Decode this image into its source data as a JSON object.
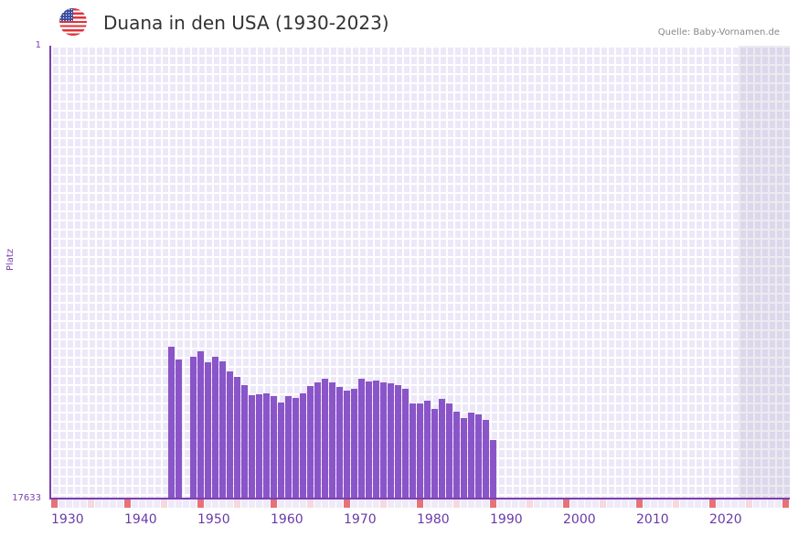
{
  "header": {
    "title": "Duana in den USA (1930-2023)",
    "source": "Quelle: Baby-Vornamen.de",
    "flag_icon": "us-flag-icon"
  },
  "colors": {
    "bar": "#8a55c8",
    "axis": "#7b3fb0",
    "decade_marker": "#e57278",
    "half_decade_marker": "#f5d9e0",
    "grid_cell": "#ede8f8",
    "future_shade": "#e3dfee"
  },
  "chart_data": {
    "type": "bar",
    "title": "Duana in den USA (1930-2023)",
    "xlabel": "",
    "ylabel": "Platz",
    "y_inverted": true,
    "ylim": [
      1,
      17633
    ],
    "y_ticks": [
      "1",
      "17633"
    ],
    "x_range": [
      1930,
      2030
    ],
    "x_ticks": [
      "1930",
      "1940",
      "1950",
      "1960",
      "1970",
      "1980",
      "1990",
      "2000",
      "2010",
      "2020"
    ],
    "future_shaded_from": 2024,
    "grid": true,
    "legend": "none",
    "x": [
      1946,
      1947,
      1949,
      1950,
      1951,
      1952,
      1953,
      1954,
      1955,
      1956,
      1957,
      1958,
      1959,
      1960,
      1961,
      1962,
      1963,
      1964,
      1965,
      1966,
      1967,
      1968,
      1969,
      1970,
      1971,
      1972,
      1973,
      1974,
      1975,
      1976,
      1977,
      1978,
      1979,
      1980,
      1981,
      1982,
      1983,
      1984,
      1985,
      1986,
      1987,
      1988,
      1989,
      1990
    ],
    "series": [
      {
        "name": "Platz",
        "values": [
          11720,
          12219,
          12112,
          11898,
          12326,
          12112,
          12290,
          12682,
          12896,
          13216,
          13608,
          13572,
          13537,
          13643,
          13893,
          13643,
          13715,
          13537,
          13252,
          13109,
          12967,
          13109,
          13287,
          13430,
          13358,
          12967,
          13074,
          13038,
          13109,
          13145,
          13216,
          13358,
          13928,
          13928,
          13822,
          14142,
          13750,
          13928,
          14249,
          14498,
          14285,
          14356,
          14570,
          15354
        ]
      }
    ],
    "source": "Quelle: Baby-Vornamen.de"
  }
}
